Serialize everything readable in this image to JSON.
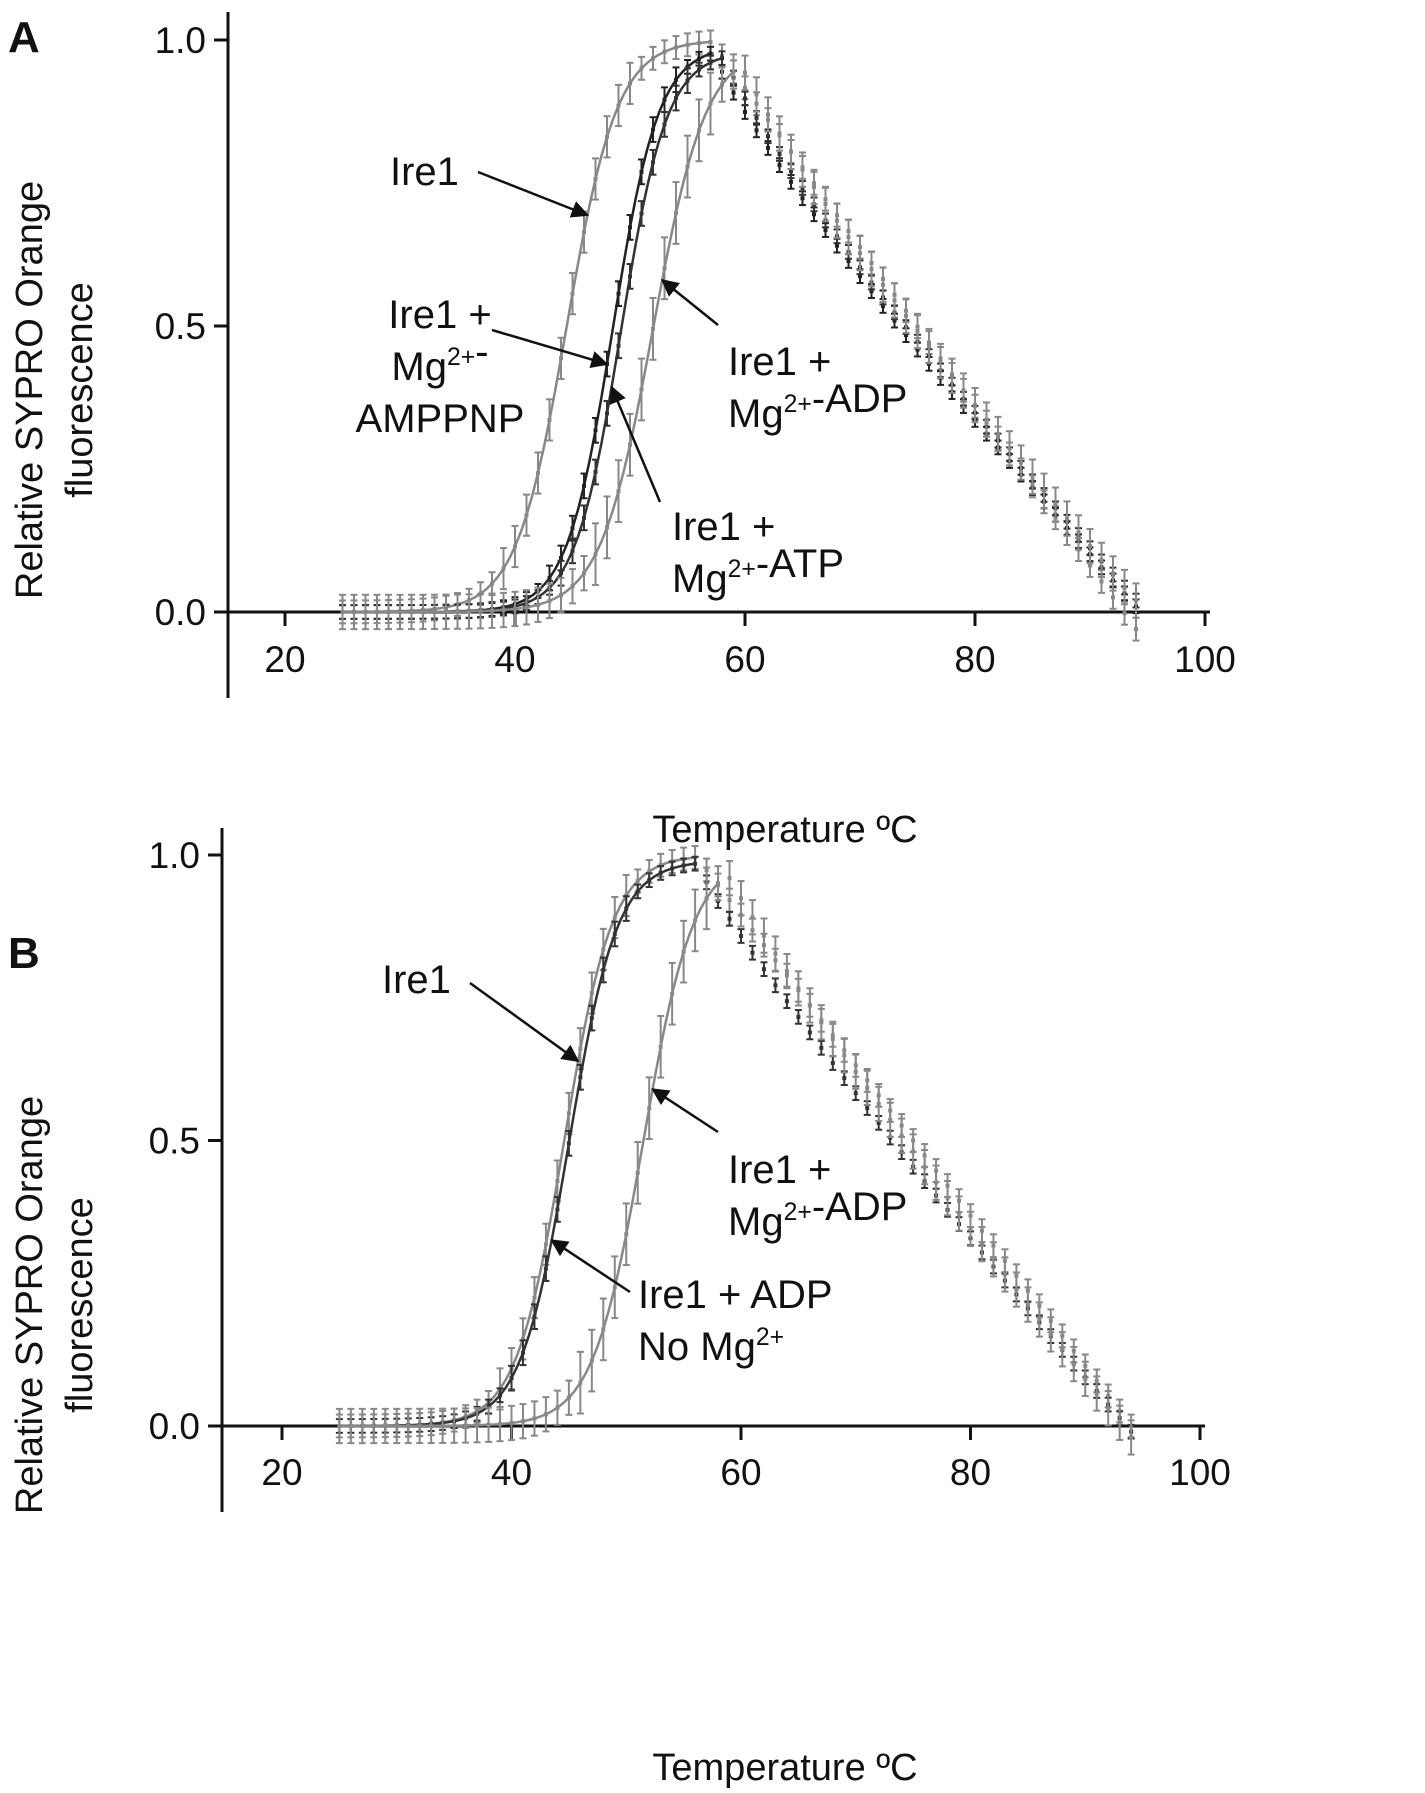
{
  "chart_data": [
    {
      "panel": "A",
      "type": "scatter",
      "xlabel": "Temperature ºC",
      "ylabel_lines": [
        "Relative SYPRO Orange",
        "fluorescence"
      ],
      "xticks": [
        "20",
        "40",
        "60",
        "80",
        "100"
      ],
      "yticks": [
        "0.0",
        "0.5",
        "1.0"
      ],
      "xlim": [
        20,
        100
      ],
      "ylim": [
        0,
        1
      ],
      "x_range": [
        25,
        94
      ],
      "x_step": 1,
      "series": [
        {
          "id": "ire1",
          "color": "#888888",
          "tm": 44.5,
          "slope": 2.2,
          "peak": 57,
          "peak_y": 1.0,
          "end_y": -0.03,
          "shape": 1.0,
          "err": 0.02
        },
        {
          "id": "ampp",
          "color": "#222222",
          "tm": 48.5,
          "slope": 2.0,
          "peak": 57,
          "peak_y": 0.99,
          "end_y": 0.01,
          "shape": 0.85,
          "err": 0.012
        },
        {
          "id": "atp",
          "color": "#333333",
          "tm": 49.2,
          "slope": 2.0,
          "peak": 58,
          "peak_y": 0.98,
          "end_y": 0.02,
          "shape": 0.85,
          "err": 0.012
        },
        {
          "id": "adp",
          "color": "#888888",
          "tm": 52.0,
          "slope": 2.3,
          "peak": 59,
          "peak_y": 0.99,
          "end_y": 0.02,
          "shape": 0.85,
          "err": 0.03
        }
      ],
      "annotations": [
        {
          "lines": [
            "Ire1"
          ],
          "series": "ire1",
          "target_x": 46.3
        },
        {
          "lines": [
            "Ire1 +",
            "Mg2+-",
            "AMPPNP"
          ],
          "series": "ampp",
          "target_x": 48.0
        },
        {
          "lines": [
            "Ire1 +",
            "Mg2+-ADP"
          ],
          "series": "adp",
          "target_x": 52.8
        },
        {
          "lines": [
            "Ire1 +",
            "Mg2+-ATP"
          ],
          "series": "atp",
          "target_x": 48.4
        }
      ]
    },
    {
      "panel": "B",
      "type": "scatter",
      "xlabel": "Temperature ºC",
      "ylabel_lines": [
        "Relative SYPRO Orange",
        "fluorescence"
      ],
      "xticks": [
        "20",
        "40",
        "60",
        "80",
        "100"
      ],
      "yticks": [
        "0.0",
        "0.5",
        "1.0"
      ],
      "xlim": [
        20,
        100
      ],
      "ylim": [
        0,
        1
      ],
      "x_range": [
        25,
        94
      ],
      "x_step": 1,
      "series": [
        {
          "id": "ire1",
          "color": "#888888",
          "tm": 44.6,
          "slope": 2.1,
          "peak": 56,
          "peak_y": 1.0,
          "end_y": 0.0,
          "shape": 1.0,
          "err": 0.02
        },
        {
          "id": "adp_nomg",
          "color": "#333333",
          "tm": 45.0,
          "slope": 2.1,
          "peak": 56,
          "peak_y": 0.99,
          "end_y": -0.01,
          "shape": 0.9,
          "err": 0.012
        },
        {
          "id": "adp",
          "color": "#888888",
          "tm": 51.5,
          "slope": 2.2,
          "peak": 58,
          "peak_y": 1.0,
          "end_y": -0.02,
          "shape": 0.9,
          "err": 0.03
        }
      ],
      "annotations": [
        {
          "lines": [
            "Ire1"
          ],
          "series": "ire1",
          "target_x": 45.8
        },
        {
          "lines": [
            "Ire1 +",
            "Mg2+-ADP"
          ],
          "series": "adp",
          "target_x": 52.3
        },
        {
          "lines": [
            "Ire1 + ADP",
            "No Mg2+"
          ],
          "series": "adp_nomg",
          "target_x": 43.5
        }
      ]
    }
  ]
}
